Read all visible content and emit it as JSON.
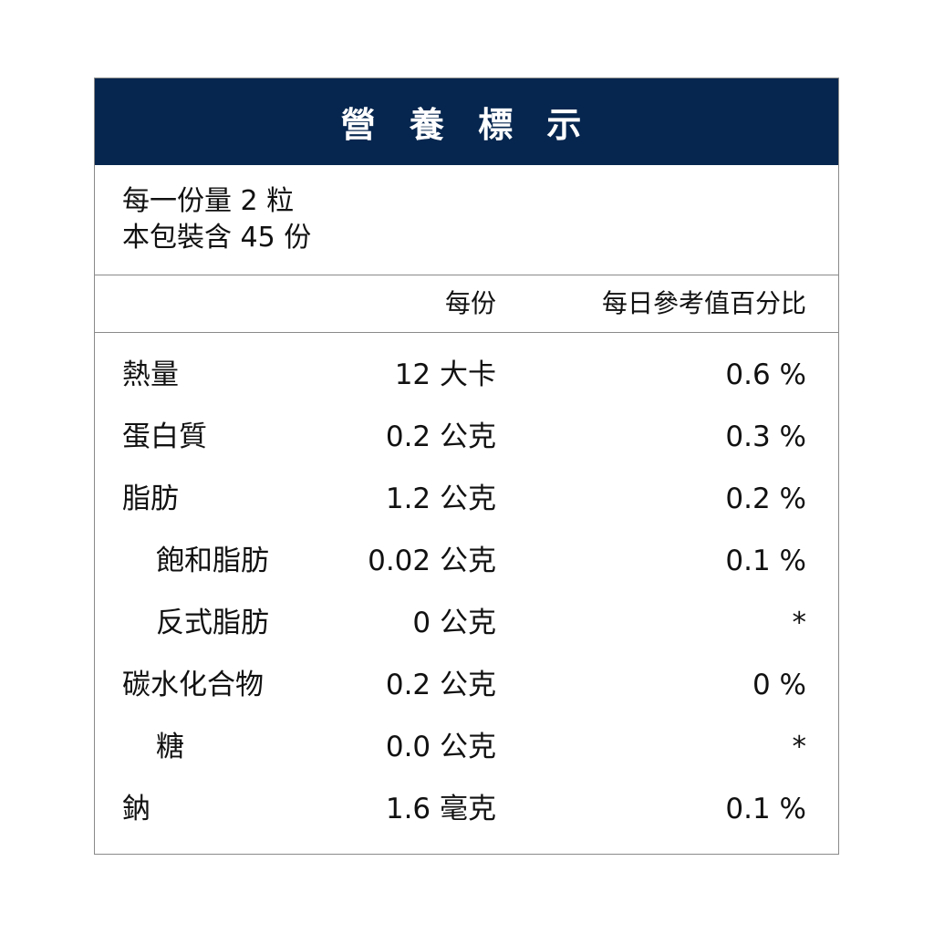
{
  "title": "營 養 標 示",
  "serving": {
    "line1": "每一份量 2 粒",
    "line2": "本包裝含 45 份"
  },
  "columns": {
    "per_serving": "每份",
    "daily_value": "每日參考值百分比"
  },
  "colors": {
    "header_bg": "#06264f",
    "header_text": "#ffffff"
  },
  "rows": [
    {
      "name": "熱量",
      "amount": "12 大卡",
      "dv": "0.6 %",
      "indent": false
    },
    {
      "name": "蛋白質",
      "amount": "0.2 公克",
      "dv": "0.3 %",
      "indent": false
    },
    {
      "name": "脂肪",
      "amount": "1.2 公克",
      "dv": "0.2 %",
      "indent": false
    },
    {
      "name": "飽和脂肪",
      "amount": "0.02 公克",
      "dv": "0.1 %",
      "indent": true
    },
    {
      "name": "反式脂肪",
      "amount": "0 公克",
      "dv": "*",
      "indent": true
    },
    {
      "name": "碳水化合物",
      "amount": "0.2 公克",
      "dv": "0 %",
      "indent": false
    },
    {
      "name": "糖",
      "amount": "0.0 公克",
      "dv": "*",
      "indent": true
    },
    {
      "name": "鈉",
      "amount": "1.6 毫克",
      "dv": "0.1 %",
      "indent": false
    }
  ]
}
